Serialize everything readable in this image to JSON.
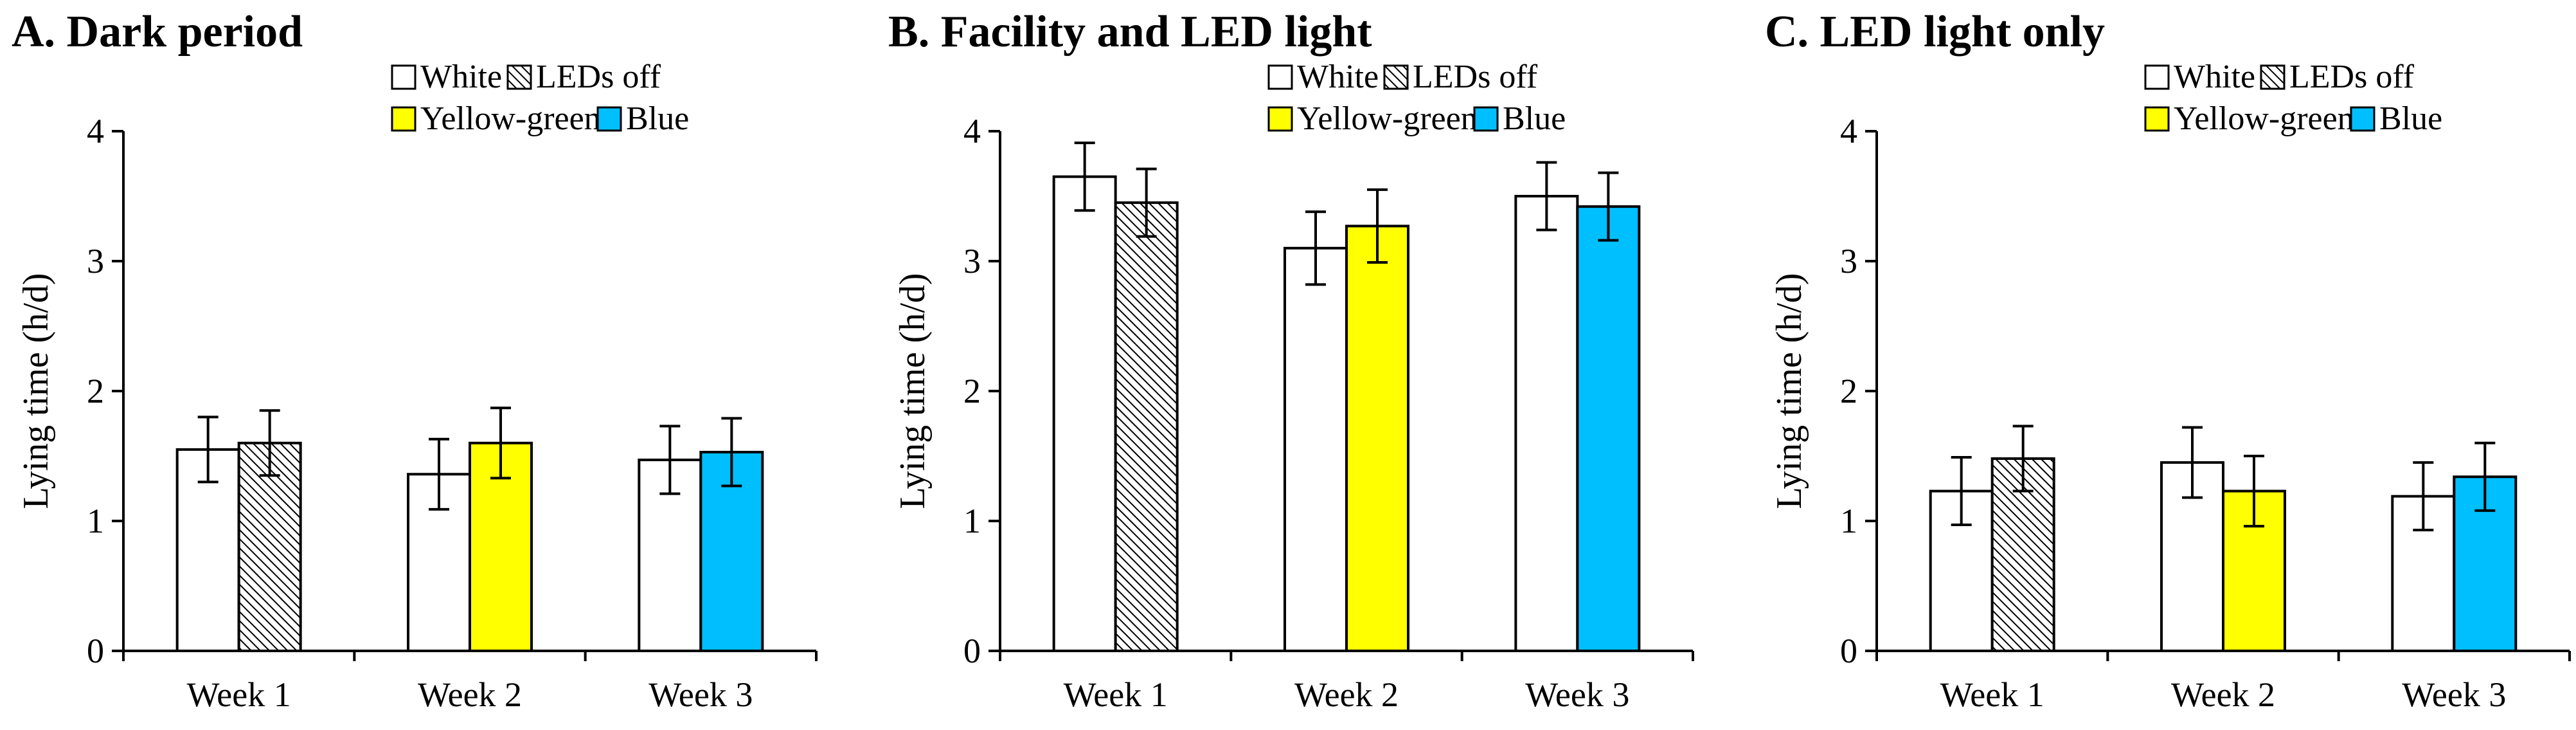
{
  "chart_data": [
    {
      "type": "bar",
      "title": "A. Dark period",
      "ylabel": "Lying time (h/d)",
      "xlabel": "",
      "ylim": [
        0,
        4
      ],
      "yticks": [
        "0",
        "1",
        "2",
        "3",
        "4"
      ],
      "categories": [
        "Week 1",
        "Week 2",
        "Week 3"
      ],
      "legend": {
        "white": "White",
        "off": "LEDs off",
        "yellow": "Yellow-green",
        "blue": "Blue",
        "placement": "top-right"
      },
      "bars": [
        {
          "category": "Week 1",
          "position": "left",
          "treatment": "White",
          "fill": "#ffffff",
          "value": 1.55,
          "error": 0.25
        },
        {
          "category": "Week 1",
          "position": "right",
          "treatment": "LEDs off",
          "fill": "hatch",
          "value": 1.6,
          "error": 0.25
        },
        {
          "category": "Week 2",
          "position": "left",
          "treatment": "White",
          "fill": "#ffffff",
          "value": 1.36,
          "error": 0.27
        },
        {
          "category": "Week 2",
          "position": "right",
          "treatment": "Yellow-green",
          "fill": "#ffff00",
          "value": 1.6,
          "error": 0.27
        },
        {
          "category": "Week 3",
          "position": "left",
          "treatment": "White",
          "fill": "#ffffff",
          "value": 1.47,
          "error": 0.26
        },
        {
          "category": "Week 3",
          "position": "right",
          "treatment": "Blue",
          "fill": "#00bfff",
          "value": 1.53,
          "error": 0.26
        }
      ]
    },
    {
      "type": "bar",
      "title": "B. Facility and LED light",
      "ylabel": "Lying time (h/d)",
      "xlabel": "",
      "ylim": [
        0,
        4
      ],
      "yticks": [
        "0",
        "1",
        "2",
        "3",
        "4"
      ],
      "categories": [
        "Week 1",
        "Week 2",
        "Week 3"
      ],
      "legend": {
        "white": "White",
        "off": "LEDs off",
        "yellow": "Yellow-green",
        "blue": "Blue",
        "placement": "top-right"
      },
      "bars": [
        {
          "category": "Week 1",
          "position": "left",
          "treatment": "White",
          "fill": "#ffffff",
          "value": 3.65,
          "error": 0.26
        },
        {
          "category": "Week 1",
          "position": "right",
          "treatment": "LEDs off",
          "fill": "hatch",
          "value": 3.45,
          "error": 0.26
        },
        {
          "category": "Week 2",
          "position": "left",
          "treatment": "White",
          "fill": "#ffffff",
          "value": 3.1,
          "error": 0.28
        },
        {
          "category": "Week 2",
          "position": "right",
          "treatment": "Yellow-green",
          "fill": "#ffff00",
          "value": 3.27,
          "error": 0.28
        },
        {
          "category": "Week 3",
          "position": "left",
          "treatment": "White",
          "fill": "#ffffff",
          "value": 3.5,
          "error": 0.26
        },
        {
          "category": "Week 3",
          "position": "right",
          "treatment": "Blue",
          "fill": "#00bfff",
          "value": 3.42,
          "error": 0.26
        }
      ]
    },
    {
      "type": "bar",
      "title": "C. LED light only",
      "ylabel": "Lying time (h/d)",
      "xlabel": "",
      "ylim": [
        0,
        4
      ],
      "yticks": [
        "0",
        "1",
        "2",
        "3",
        "4"
      ],
      "categories": [
        "Week 1",
        "Week 2",
        "Week 3"
      ],
      "legend": {
        "white": "White",
        "off": "LEDs off",
        "yellow": "Yellow-green",
        "blue": "Blue",
        "placement": "top-right"
      },
      "bars": [
        {
          "category": "Week 1",
          "position": "left",
          "treatment": "White",
          "fill": "#ffffff",
          "value": 1.23,
          "error": 0.26
        },
        {
          "category": "Week 1",
          "position": "right",
          "treatment": "LEDs off",
          "fill": "hatch",
          "value": 1.48,
          "error": 0.25
        },
        {
          "category": "Week 2",
          "position": "left",
          "treatment": "White",
          "fill": "#ffffff",
          "value": 1.45,
          "error": 0.27
        },
        {
          "category": "Week 2",
          "position": "right",
          "treatment": "Yellow-green",
          "fill": "#ffff00",
          "value": 1.23,
          "error": 0.27
        },
        {
          "category": "Week 3",
          "position": "left",
          "treatment": "White",
          "fill": "#ffffff",
          "value": 1.19,
          "error": 0.26
        },
        {
          "category": "Week 3",
          "position": "right",
          "treatment": "Blue",
          "fill": "#00bfff",
          "value": 1.34,
          "error": 0.26
        }
      ]
    }
  ]
}
